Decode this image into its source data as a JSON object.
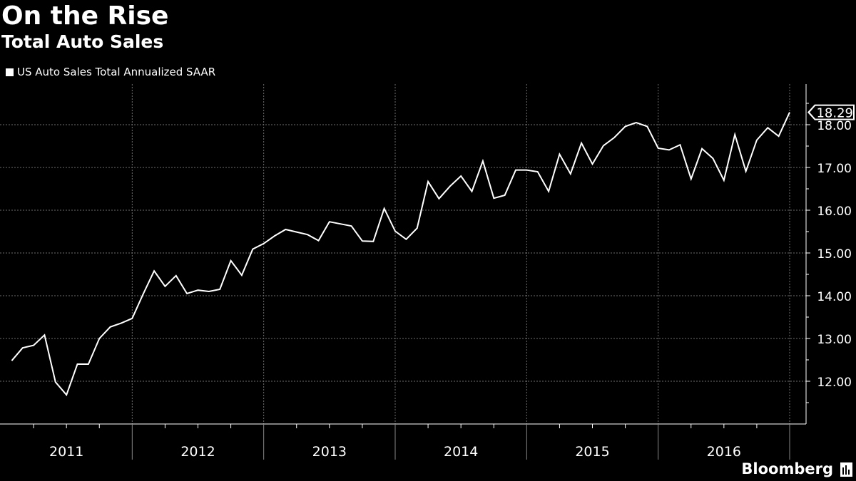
{
  "header": {
    "title": "On the Rise",
    "subtitle": "Total Auto Sales"
  },
  "legend": {
    "series_label": "US Auto Sales Total Annualized SAAR"
  },
  "brand": {
    "name": "Bloomberg",
    "icon": "bloomberg-chart-icon"
  },
  "colors": {
    "background": "#000000",
    "line": "#ffffff",
    "grid": "#6e6e6e",
    "text": "#ffffff"
  },
  "chart_data": {
    "type": "line",
    "title": "On the Rise",
    "subtitle": "Total Auto Sales",
    "xlabel": "",
    "ylabel": "",
    "series": [
      {
        "name": "US Auto Sales Total Annualized SAAR",
        "x": [
          "2011-01",
          "2011-02",
          "2011-03",
          "2011-04",
          "2011-05",
          "2011-06",
          "2011-07",
          "2011-08",
          "2011-09",
          "2011-10",
          "2011-11",
          "2011-12",
          "2012-01",
          "2012-02",
          "2012-03",
          "2012-04",
          "2012-05",
          "2012-06",
          "2012-07",
          "2012-08",
          "2012-09",
          "2012-10",
          "2012-11",
          "2012-12",
          "2013-01",
          "2013-02",
          "2013-03",
          "2013-04",
          "2013-05",
          "2013-06",
          "2013-07",
          "2013-08",
          "2013-09",
          "2013-10",
          "2013-11",
          "2013-12",
          "2014-01",
          "2014-02",
          "2014-03",
          "2014-04",
          "2014-05",
          "2014-06",
          "2014-07",
          "2014-08",
          "2014-09",
          "2014-10",
          "2014-11",
          "2014-12",
          "2015-01",
          "2015-02",
          "2015-03",
          "2015-04",
          "2015-05",
          "2015-06",
          "2015-07",
          "2015-08",
          "2015-09",
          "2015-10",
          "2015-11",
          "2015-12",
          "2016-01",
          "2016-02",
          "2016-03",
          "2016-04",
          "2016-05",
          "2016-06",
          "2016-07",
          "2016-08",
          "2016-09",
          "2016-10",
          "2016-11",
          "2016-12"
        ],
        "values": [
          12.48,
          12.78,
          12.84,
          13.08,
          11.98,
          11.68,
          12.4,
          12.4,
          13.0,
          13.27,
          13.36,
          13.47,
          14.04,
          14.58,
          14.22,
          14.47,
          14.05,
          14.13,
          14.1,
          14.15,
          14.82,
          14.48,
          15.09,
          15.22,
          15.4,
          15.55,
          15.49,
          15.43,
          15.29,
          15.73,
          15.68,
          15.63,
          15.28,
          15.27,
          16.04,
          15.51,
          15.32,
          15.58,
          16.67,
          16.27,
          16.56,
          16.8,
          16.44,
          17.15,
          16.28,
          16.35,
          16.94,
          16.94,
          16.9,
          16.44,
          17.31,
          16.85,
          17.57,
          17.08,
          17.51,
          17.7,
          17.96,
          18.05,
          17.96,
          17.45,
          17.41,
          17.53,
          16.73,
          17.44,
          17.21,
          16.7,
          17.77,
          16.91,
          17.64,
          17.93,
          17.73,
          18.29
        ]
      }
    ],
    "x_tick_labels": [
      "2011",
      "2012",
      "2013",
      "2014",
      "2015",
      "2016"
    ],
    "y_ticks": [
      12,
      13,
      14,
      15,
      16,
      17,
      18
    ],
    "y_tick_labels": [
      "12.00",
      "13.00",
      "14.00",
      "15.00",
      "16.00",
      "17.00",
      "18.00"
    ],
    "ylim": [
      11.0,
      18.95
    ],
    "xlim": [
      "2010-12",
      "2016-12"
    ],
    "last_value_label": "18.29",
    "grid": true,
    "y_axis_side": "right",
    "legend_position": "top-left"
  }
}
